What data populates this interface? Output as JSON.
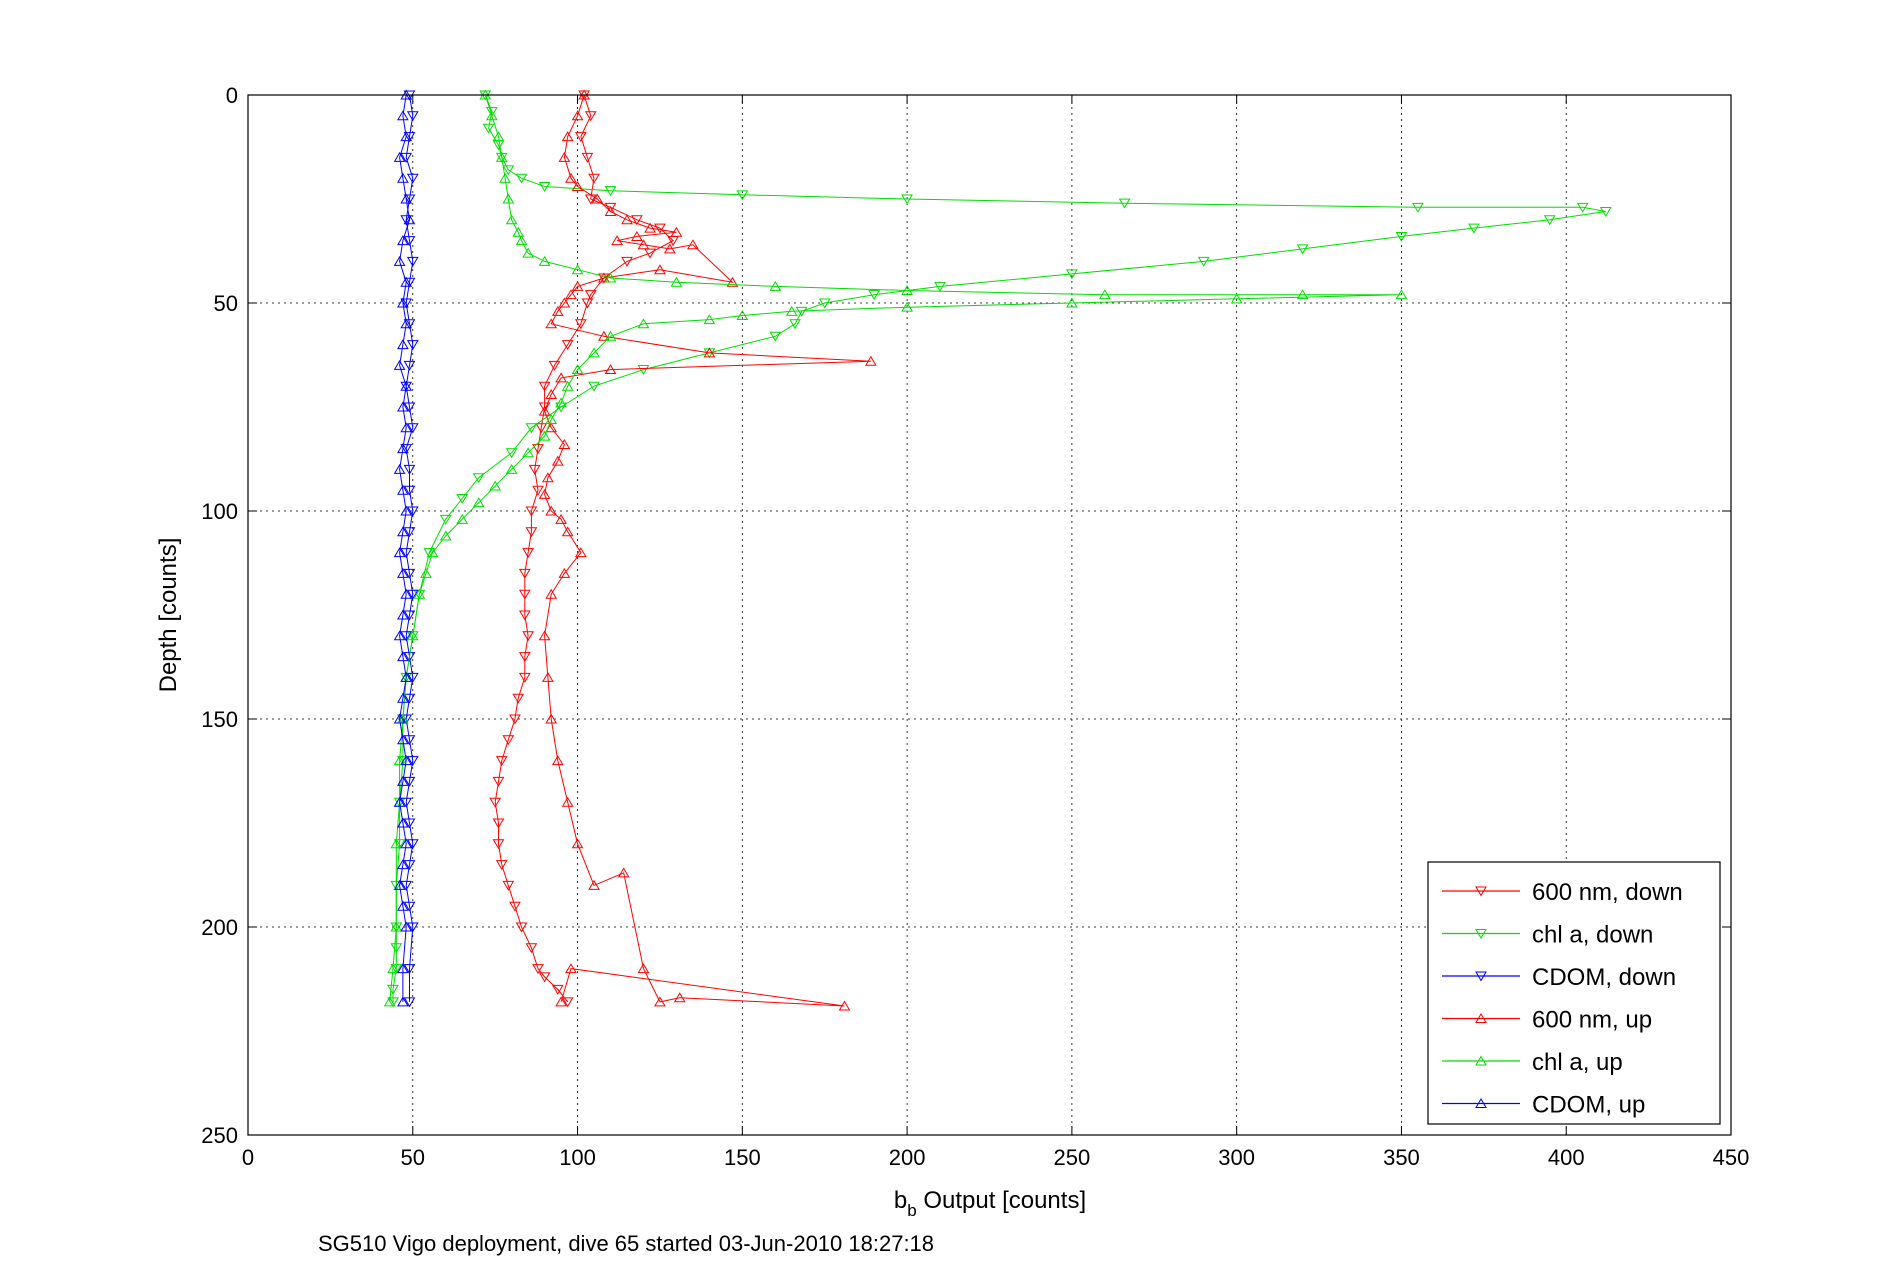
{
  "chart_data": {
    "type": "line",
    "title": "",
    "xlabel_main": "b",
    "xlabel_sub": "b",
    "xlabel_rest": " Output [counts]",
    "ylabel": "Depth [counts]",
    "caption": "SG510 Vigo deployment, dive 65 started 03-Jun-2010 18:27:18",
    "xlim": [
      0,
      450
    ],
    "ylim": [
      0,
      250
    ],
    "y_reversed": true,
    "xticks": [
      "0",
      "50",
      "100",
      "150",
      "200",
      "250",
      "300",
      "350",
      "400",
      "450"
    ],
    "yticks": [
      "0",
      "50",
      "100",
      "150",
      "200",
      "250"
    ],
    "grid": true,
    "legend_position": "bottom-right",
    "series": [
      {
        "name": "600 nm, down",
        "color": "#ff0000",
        "marker": "triangle-down",
        "line": true,
        "x": [
          102,
          104,
          101,
          103,
          105,
          104,
          110,
          118,
          125,
          129,
          122,
          115,
          108,
          104,
          103,
          101,
          97,
          93,
          90,
          90,
          89,
          88,
          87,
          88,
          86,
          86,
          85,
          84,
          84,
          84,
          85,
          84,
          84,
          82,
          81,
          79,
          77,
          76,
          75,
          76,
          76,
          77,
          79,
          81,
          83,
          86,
          88,
          90,
          94,
          97
        ],
        "y": [
          0,
          5,
          10,
          15,
          20,
          25,
          27,
          30,
          32,
          35,
          38,
          40,
          44,
          48,
          50,
          55,
          60,
          65,
          70,
          75,
          80,
          85,
          90,
          95,
          100,
          105,
          110,
          115,
          120,
          125,
          130,
          135,
          140,
          145,
          150,
          155,
          160,
          165,
          170,
          175,
          180,
          185,
          190,
          195,
          200,
          205,
          210,
          212,
          215,
          218
        ]
      },
      {
        "name": "chl a, down",
        "color": "#00dd00",
        "marker": "triangle-down",
        "line": true,
        "x": [
          72,
          74,
          73,
          76,
          77,
          79,
          83,
          90,
          110,
          150,
          200,
          266,
          355,
          405,
          412,
          395,
          372,
          350,
          320,
          290,
          250,
          210,
          190,
          175,
          168,
          166,
          160,
          140,
          120,
          105,
          95,
          86,
          80,
          70,
          65,
          60,
          55,
          52,
          50,
          48,
          47,
          47,
          46,
          46,
          45,
          45,
          45,
          45,
          44,
          44
        ],
        "y": [
          0,
          4,
          8,
          12,
          15,
          18,
          20,
          22,
          23,
          24,
          25,
          26,
          27,
          27,
          28,
          30,
          32,
          34,
          37,
          40,
          43,
          46,
          48,
          50,
          52,
          55,
          58,
          62,
          66,
          70,
          75,
          80,
          86,
          92,
          97,
          102,
          110,
          120,
          130,
          140,
          150,
          160,
          170,
          180,
          190,
          200,
          205,
          210,
          215,
          218
        ]
      },
      {
        "name": "CDOM, down",
        "color": "#0000ff",
        "marker": "triangle-down",
        "line": true,
        "x": [
          49,
          50,
          49,
          48,
          50,
          49,
          48,
          49,
          50,
          49,
          48,
          49,
          50,
          49,
          48,
          49,
          50,
          48,
          49,
          49,
          50,
          49,
          48,
          49,
          50,
          49,
          48,
          49,
          50,
          49,
          48,
          49,
          50,
          49,
          48,
          49,
          50,
          49,
          48,
          49,
          50,
          49,
          49
        ],
        "y": [
          0,
          5,
          10,
          15,
          20,
          25,
          30,
          35,
          40,
          45,
          50,
          55,
          60,
          65,
          70,
          75,
          80,
          85,
          90,
          95,
          100,
          105,
          110,
          115,
          120,
          125,
          130,
          135,
          140,
          145,
          150,
          155,
          160,
          165,
          170,
          175,
          180,
          185,
          190,
          195,
          200,
          210,
          218
        ]
      },
      {
        "name": "600 nm, up",
        "color": "#ff0000",
        "marker": "triangle-up",
        "line": true,
        "x": [
          102,
          100,
          97,
          96,
          98,
          100,
          106,
          110,
          115,
          122,
          130,
          118,
          112,
          120,
          128,
          135,
          147,
          125,
          108,
          100,
          98,
          96,
          94,
          92,
          108,
          140,
          189,
          110,
          95,
          92,
          90,
          92,
          96,
          94,
          91,
          90,
          92,
          95,
          97,
          101,
          96,
          92,
          90,
          91,
          92,
          94,
          97,
          100,
          105,
          114,
          120,
          125,
          131,
          181,
          98,
          95
        ],
        "y": [
          0,
          5,
          10,
          15,
          20,
          22,
          25,
          28,
          30,
          32,
          33,
          34,
          35,
          36,
          37,
          36,
          45,
          42,
          44,
          46,
          48,
          50,
          52,
          55,
          58,
          62,
          64,
          66,
          68,
          72,
          76,
          80,
          84,
          88,
          92,
          96,
          100,
          102,
          105,
          110,
          115,
          120,
          130,
          140,
          150,
          160,
          170,
          180,
          190,
          187,
          210,
          218,
          217,
          219,
          210,
          218
        ]
      },
      {
        "name": "chl a, up",
        "color": "#00dd00",
        "marker": "triangle-up",
        "line": true,
        "x": [
          72,
          74,
          76,
          77,
          78,
          79,
          80,
          82,
          83,
          85,
          90,
          100,
          110,
          130,
          160,
          200,
          260,
          320,
          350,
          300,
          250,
          200,
          165,
          150,
          140,
          120,
          110,
          105,
          100,
          97,
          95,
          92,
          90,
          85,
          80,
          75,
          70,
          65,
          60,
          56,
          54,
          52,
          50,
          48,
          47,
          46,
          46,
          45,
          45,
          44,
          43
        ],
        "y": [
          0,
          5,
          10,
          15,
          20,
          25,
          30,
          33,
          35,
          38,
          40,
          42,
          44,
          45,
          46,
          47,
          48,
          48,
          48,
          49,
          50,
          51,
          52,
          53,
          54,
          55,
          58,
          62,
          66,
          70,
          74,
          78,
          82,
          86,
          90,
          94,
          98,
          102,
          106,
          110,
          115,
          120,
          130,
          140,
          150,
          160,
          170,
          180,
          200,
          210,
          218
        ]
      },
      {
        "name": "CDOM, up",
        "color": "#0000ff",
        "marker": "triangle-up",
        "line": true,
        "x": [
          48,
          47,
          48,
          46,
          47,
          48,
          49,
          47,
          46,
          48,
          47,
          48,
          47,
          46,
          48,
          47,
          48,
          47,
          46,
          47,
          48,
          47,
          46,
          47,
          48,
          47,
          46,
          47,
          48,
          47,
          46,
          47,
          48,
          47,
          46,
          47,
          48,
          47,
          46,
          47,
          48,
          47,
          47
        ],
        "y": [
          0,
          5,
          10,
          15,
          20,
          25,
          30,
          35,
          40,
          45,
          50,
          55,
          60,
          65,
          70,
          75,
          80,
          85,
          90,
          95,
          100,
          105,
          110,
          115,
          120,
          125,
          130,
          135,
          140,
          145,
          150,
          155,
          160,
          165,
          170,
          175,
          180,
          185,
          190,
          195,
          200,
          210,
          218
        ]
      }
    ]
  }
}
